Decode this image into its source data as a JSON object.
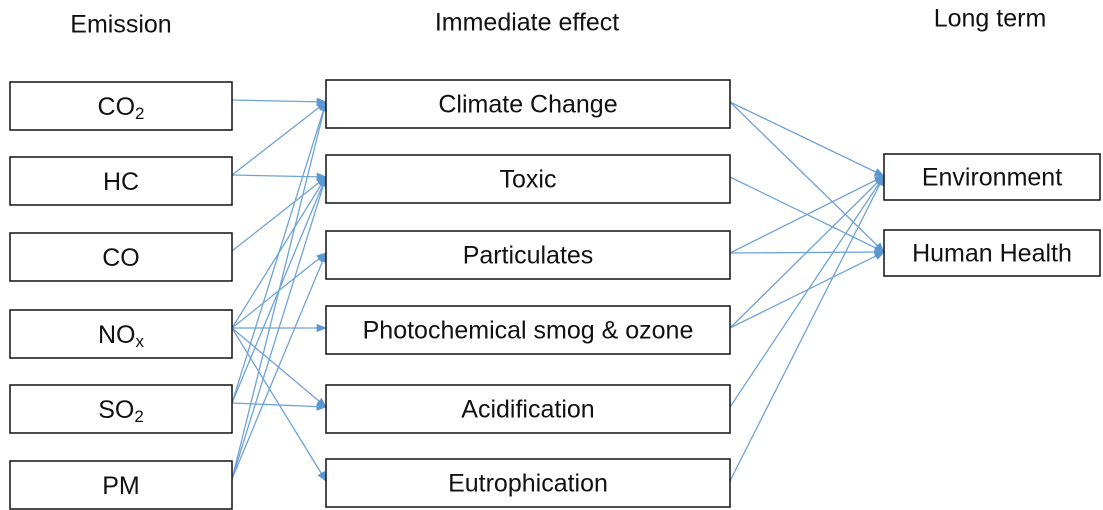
{
  "headers": {
    "emission": "Emission",
    "immediate": "Immediate effect",
    "long_term": "Long term"
  },
  "emissions": [
    {
      "label": "CO",
      "sub": "2"
    },
    {
      "label": "HC"
    },
    {
      "label": "CO"
    },
    {
      "label": "NO",
      "sub": "x"
    },
    {
      "label": "SO",
      "sub": "2"
    },
    {
      "label": "PM"
    }
  ],
  "effects": [
    "Climate Change",
    "Toxic",
    "Particulates",
    "Photochemical smog & ozone",
    "Acidification",
    "Eutrophication"
  ],
  "long_term": [
    "Environment",
    "Human Health"
  ]
}
